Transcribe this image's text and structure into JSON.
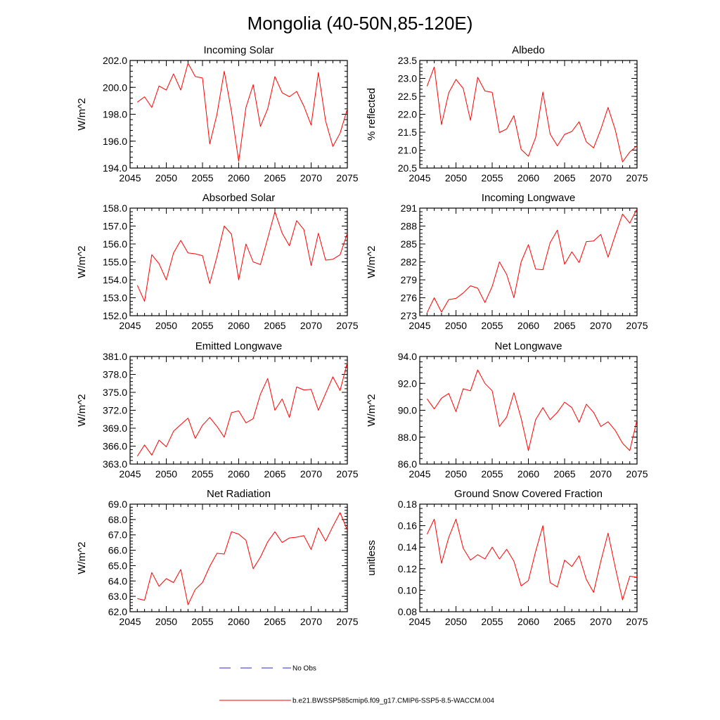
{
  "figure": {
    "title": "Mongolia (40-50N,85-120E)"
  },
  "legend": [
    {
      "label": "No Obs",
      "color": "#2b2bcc",
      "style": "dashed"
    },
    {
      "label": "b.e21.BWSSP585cmip6.f09_g17.CMIP6-SSP5-8.5-WACCM.004",
      "color": "#ff0000",
      "style": "solid"
    }
  ],
  "chart_data": [
    {
      "type": "line",
      "title": "Incoming Solar",
      "xlabel": "",
      "ylabel": "W/m^2",
      "xlim": [
        2045,
        2075
      ],
      "ylim": [
        194,
        202
      ],
      "xticks": [
        2045,
        2050,
        2055,
        2060,
        2065,
        2070,
        2075
      ],
      "yticks": [
        194,
        196,
        198,
        200,
        202
      ],
      "yticklabels": [
        "194.0",
        "196.0",
        "198.0",
        "200.0",
        "202.0"
      ],
      "x": [
        2046,
        2047,
        2048,
        2049,
        2050,
        2051,
        2052,
        2053,
        2054,
        2055,
        2056,
        2057,
        2058,
        2059,
        2060,
        2061,
        2062,
        2063,
        2064,
        2065,
        2066,
        2067,
        2068,
        2069,
        2070,
        2071,
        2072,
        2073,
        2074,
        2075
      ],
      "series": [
        {
          "name": "b.e21.BWSSP585cmip6.f09_g17.CMIP6-SSP5-8.5-WACCM.004",
          "color": "#ff0000",
          "values": [
            198.9,
            199.3,
            198.5,
            200.1,
            199.8,
            201.0,
            199.8,
            201.8,
            200.8,
            200.7,
            195.8,
            198.0,
            201.2,
            198.2,
            194.5,
            198.5,
            200.2,
            197.1,
            198.4,
            200.8,
            199.6,
            199.3,
            199.7,
            198.6,
            197.2,
            201.1,
            197.5,
            195.6,
            196.6,
            198.4
          ]
        }
      ]
    },
    {
      "type": "line",
      "title": "Albedo",
      "xlabel": "",
      "ylabel": "% reflected",
      "xlim": [
        2045,
        2075
      ],
      "ylim": [
        20.5,
        23.5
      ],
      "xticks": [
        2045,
        2050,
        2055,
        2060,
        2065,
        2070,
        2075
      ],
      "yticks": [
        20.5,
        21.0,
        21.5,
        22.0,
        22.5,
        23.0,
        23.5
      ],
      "yticklabels": [
        "20.5",
        "21.0",
        "21.5",
        "22.0",
        "22.5",
        "23.0",
        "23.5"
      ],
      "x": [
        2046,
        2047,
        2048,
        2049,
        2050,
        2051,
        2052,
        2053,
        2054,
        2055,
        2056,
        2057,
        2058,
        2059,
        2060,
        2061,
        2062,
        2063,
        2064,
        2065,
        2066,
        2067,
        2068,
        2069,
        2070,
        2071,
        2072,
        2073,
        2074,
        2075
      ],
      "series": [
        {
          "name": "b.e21.BWSSP585cmip6.f09_g17.CMIP6-SSP5-8.5-WACCM.004",
          "color": "#ff0000",
          "values": [
            22.78,
            23.32,
            21.71,
            22.6,
            22.97,
            22.72,
            21.83,
            23.03,
            22.65,
            22.61,
            21.49,
            21.59,
            21.96,
            21.02,
            20.83,
            21.35,
            22.62,
            21.45,
            21.12,
            21.44,
            21.52,
            21.79,
            21.23,
            21.06,
            21.58,
            22.19,
            21.56,
            20.67,
            20.95,
            21.12
          ]
        }
      ]
    },
    {
      "type": "line",
      "title": "Absorbed Solar",
      "xlabel": "",
      "ylabel": "W/m^2",
      "xlim": [
        2045,
        2075
      ],
      "ylim": [
        152,
        158
      ],
      "xticks": [
        2045,
        2050,
        2055,
        2060,
        2065,
        2070,
        2075
      ],
      "yticks": [
        152,
        153,
        154,
        155,
        156,
        157,
        158
      ],
      "yticklabels": [
        "152.0",
        "153.0",
        "154.0",
        "155.0",
        "156.0",
        "157.0",
        "158.0"
      ],
      "x": [
        2046,
        2047,
        2048,
        2049,
        2050,
        2051,
        2052,
        2053,
        2054,
        2055,
        2056,
        2057,
        2058,
        2059,
        2060,
        2061,
        2062,
        2063,
        2064,
        2065,
        2066,
        2067,
        2068,
        2069,
        2070,
        2071,
        2072,
        2073,
        2074,
        2075
      ],
      "series": [
        {
          "name": "b.e21.BWSSP585cmip6.f09_g17.CMIP6-SSP5-8.5-WACCM.004",
          "color": "#ff0000",
          "values": [
            153.7,
            152.8,
            155.4,
            154.9,
            154.0,
            155.5,
            156.2,
            155.5,
            155.45,
            155.35,
            153.8,
            155.3,
            157.0,
            156.55,
            154.0,
            156.0,
            155.0,
            154.85,
            156.3,
            157.8,
            156.6,
            155.9,
            157.3,
            156.8,
            154.8,
            156.6,
            155.1,
            155.15,
            155.4,
            156.6
          ]
        }
      ]
    },
    {
      "type": "line",
      "title": "Incoming Longwave",
      "xlabel": "",
      "ylabel": "W/m^2",
      "xlim": [
        2045,
        2075
      ],
      "ylim": [
        273,
        291
      ],
      "xticks": [
        2045,
        2050,
        2055,
        2060,
        2065,
        2070,
        2075
      ],
      "yticks": [
        273,
        276,
        279,
        282,
        285,
        288,
        291
      ],
      "yticklabels": [
        "273",
        "276",
        "279",
        "282",
        "285",
        "288",
        "291"
      ],
      "x": [
        2046,
        2047,
        2048,
        2049,
        2050,
        2051,
        2052,
        2053,
        2054,
        2055,
        2056,
        2057,
        2058,
        2059,
        2060,
        2061,
        2062,
        2063,
        2064,
        2065,
        2066,
        2067,
        2068,
        2069,
        2070,
        2071,
        2072,
        2073,
        2074,
        2075
      ],
      "series": [
        {
          "name": "b.e21.BWSSP585cmip6.f09_g17.CMIP6-SSP5-8.5-WACCM.004",
          "color": "#ff0000",
          "values": [
            273.5,
            276.0,
            273.6,
            275.7,
            275.9,
            276.8,
            278.0,
            277.6,
            275.2,
            277.9,
            282.0,
            279.9,
            276.0,
            282.0,
            284.9,
            280.8,
            280.7,
            285.2,
            287.3,
            281.6,
            283.7,
            281.9,
            285.4,
            285.5,
            286.6,
            282.8,
            286.5,
            290.0,
            288.5,
            290.9
          ]
        }
      ]
    },
    {
      "type": "line",
      "title": "Emitted Longwave",
      "xlabel": "",
      "ylabel": "W/m^2",
      "xlim": [
        2045,
        2075
      ],
      "ylim": [
        363,
        381
      ],
      "xticks": [
        2045,
        2050,
        2055,
        2060,
        2065,
        2070,
        2075
      ],
      "yticks": [
        363,
        366,
        369,
        372,
        375,
        378,
        381
      ],
      "yticklabels": [
        "363.0",
        "366.0",
        "369.0",
        "372.0",
        "375.0",
        "378.0",
        "381.0"
      ],
      "x": [
        2046,
        2047,
        2048,
        2049,
        2050,
        2051,
        2052,
        2053,
        2054,
        2055,
        2056,
        2057,
        2058,
        2059,
        2060,
        2061,
        2062,
        2063,
        2064,
        2065,
        2066,
        2067,
        2068,
        2069,
        2070,
        2071,
        2072,
        2073,
        2074,
        2075
      ],
      "series": [
        {
          "name": "b.e21.BWSSP585cmip6.f09_g17.CMIP6-SSP5-8.5-WACCM.004",
          "color": "#ff0000",
          "values": [
            364.3,
            366.2,
            364.5,
            367.0,
            365.9,
            368.5,
            369.6,
            370.7,
            367.3,
            369.5,
            370.8,
            369.3,
            367.5,
            371.6,
            371.9,
            369.9,
            370.6,
            374.7,
            377.3,
            372.0,
            373.9,
            370.8,
            375.9,
            375.4,
            375.5,
            372.0,
            374.8,
            377.6,
            375.3,
            380.0
          ]
        }
      ]
    },
    {
      "type": "line",
      "title": "Net Longwave",
      "xlabel": "",
      "ylabel": "W/m^2",
      "xlim": [
        2045,
        2075
      ],
      "ylim": [
        86,
        94
      ],
      "xticks": [
        2045,
        2050,
        2055,
        2060,
        2065,
        2070,
        2075
      ],
      "yticks": [
        86,
        88,
        90,
        92,
        94
      ],
      "yticklabels": [
        "86.0",
        "88.0",
        "90.0",
        "92.0",
        "94.0"
      ],
      "x": [
        2046,
        2047,
        2048,
        2049,
        2050,
        2051,
        2052,
        2053,
        2054,
        2055,
        2056,
        2057,
        2058,
        2059,
        2060,
        2061,
        2062,
        2063,
        2064,
        2065,
        2066,
        2067,
        2068,
        2069,
        2070,
        2071,
        2072,
        2073,
        2074,
        2075
      ],
      "series": [
        {
          "name": "b.e21.BWSSP585cmip6.f09_g17.CMIP6-SSP5-8.5-WACCM.004",
          "color": "#ff0000",
          "values": [
            90.85,
            90.1,
            90.9,
            91.25,
            89.9,
            91.6,
            91.45,
            93.0,
            92.0,
            91.45,
            88.8,
            89.5,
            91.3,
            89.4,
            87.0,
            89.3,
            90.2,
            89.3,
            89.85,
            90.6,
            90.2,
            89.1,
            90.45,
            89.85,
            88.8,
            89.15,
            88.5,
            87.55,
            87.0,
            89.3
          ]
        }
      ]
    },
    {
      "type": "line",
      "title": "Net Radiation",
      "xlabel": "",
      "ylabel": "W/m^2",
      "xlim": [
        2045,
        2075
      ],
      "ylim": [
        62,
        69
      ],
      "xticks": [
        2045,
        2050,
        2055,
        2060,
        2065,
        2070,
        2075
      ],
      "yticks": [
        62,
        63,
        64,
        65,
        66,
        67,
        68,
        69
      ],
      "yticklabels": [
        "62.0",
        "63.0",
        "64.0",
        "65.0",
        "66.0",
        "67.0",
        "68.0",
        "69.0"
      ],
      "x": [
        2046,
        2047,
        2048,
        2049,
        2050,
        2051,
        2052,
        2053,
        2054,
        2055,
        2056,
        2057,
        2058,
        2059,
        2060,
        2061,
        2062,
        2063,
        2064,
        2065,
        2066,
        2067,
        2068,
        2069,
        2070,
        2071,
        2072,
        2073,
        2074,
        2075
      ],
      "series": [
        {
          "name": "b.e21.BWSSP585cmip6.f09_g17.CMIP6-SSP5-8.5-WACCM.004",
          "color": "#ff0000",
          "values": [
            62.85,
            62.75,
            64.55,
            63.65,
            64.15,
            63.9,
            64.75,
            62.45,
            63.45,
            63.9,
            64.95,
            65.8,
            65.75,
            67.2,
            67.05,
            66.65,
            64.8,
            65.55,
            66.55,
            67.2,
            66.5,
            66.8,
            66.85,
            66.95,
            66.05,
            67.45,
            66.6,
            67.55,
            68.45,
            67.3
          ]
        }
      ]
    },
    {
      "type": "line",
      "title": "Ground Snow Covered Fraction",
      "xlabel": "",
      "ylabel": "unitless",
      "xlim": [
        2045,
        2075
      ],
      "ylim": [
        0.08,
        0.18
      ],
      "xticks": [
        2045,
        2050,
        2055,
        2060,
        2065,
        2070,
        2075
      ],
      "yticks": [
        0.08,
        0.1,
        0.12,
        0.14,
        0.16,
        0.18
      ],
      "yticklabels": [
        "0.08",
        "0.10",
        "0.12",
        "0.14",
        "0.16",
        "0.18"
      ],
      "x": [
        2046,
        2047,
        2048,
        2049,
        2050,
        2051,
        2052,
        2053,
        2054,
        2055,
        2056,
        2057,
        2058,
        2059,
        2060,
        2061,
        2062,
        2063,
        2064,
        2065,
        2066,
        2067,
        2068,
        2069,
        2070,
        2071,
        2072,
        2073,
        2074,
        2075
      ],
      "series": [
        {
          "name": "b.e21.BWSSP585cmip6.f09_g17.CMIP6-SSP5-8.5-WACCM.004",
          "color": "#ff0000",
          "values": [
            0.152,
            0.166,
            0.125,
            0.149,
            0.166,
            0.139,
            0.128,
            0.133,
            0.129,
            0.14,
            0.129,
            0.138,
            0.127,
            0.104,
            0.109,
            0.136,
            0.16,
            0.107,
            0.103,
            0.128,
            0.122,
            0.132,
            0.11,
            0.098,
            0.127,
            0.153,
            0.121,
            0.091,
            0.113,
            0.112
          ]
        }
      ]
    }
  ]
}
